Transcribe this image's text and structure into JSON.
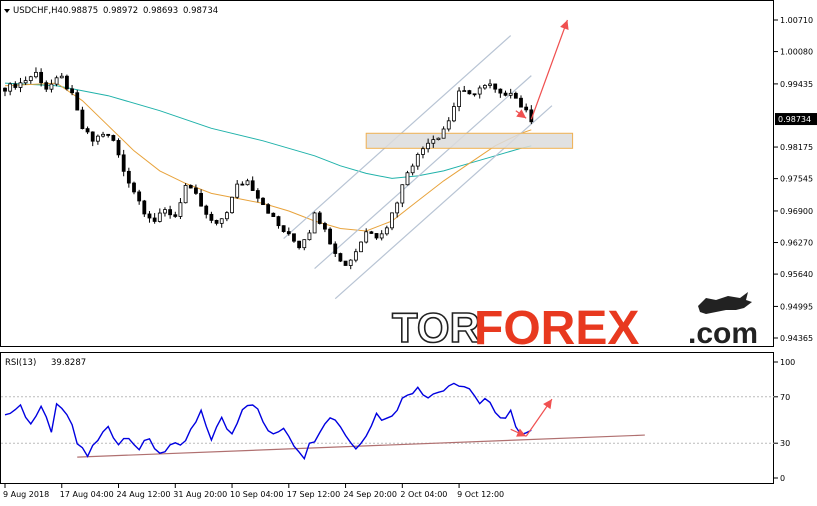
{
  "header": {
    "symbol": "USDCHF,H4",
    "open": "0.98875",
    "high": "0.98972",
    "low": "0.98693",
    "close": "0.98734"
  },
  "logo": {
    "part1": "TOR",
    "part2": "FOREX",
    "part3": ".com"
  },
  "colors": {
    "candles": "#000000",
    "ma_slow": "#20b2aa",
    "ma_fast": "#e8a33c",
    "channel": "#b8c4d4",
    "zone_fill": "#dcdcdc",
    "zone_border": "#f0b050",
    "arrow": "#f05050",
    "rsi_line": "#0000e0",
    "rsi_support": "#b07070",
    "logo_accent": "#e8391f"
  },
  "chart_data": [
    {
      "type": "candlestick",
      "name": "USDCHF,H4",
      "ylim": [
        0.94365,
        1.0071
      ],
      "price_ticks": [
        "1.00710",
        "1.00080",
        "0.99435",
        "0.98734",
        "0.98175",
        "0.97545",
        "0.96900",
        "0.96270",
        "0.95640",
        "0.94995",
        "0.94365"
      ],
      "current_price": "0.98734",
      "x_labels": [
        "9 Aug 2018",
        "17 Aug 04:00",
        "24 Aug 12:00",
        "31 Aug 20:00",
        "10 Sep 04:00",
        "17 Sep 12:00",
        "24 Sep 20:00",
        "2 Oct 04:00",
        "9 Oct 12:00"
      ],
      "x_label_index": [
        0,
        11,
        22,
        33,
        44,
        55,
        66,
        77,
        88
      ],
      "close_path": [
        [
          0,
          0.9935
        ],
        [
          3,
          0.9945
        ],
        [
          6,
          0.9965
        ],
        [
          8,
          0.9935
        ],
        [
          10,
          0.995
        ],
        [
          11,
          0.9955
        ],
        [
          13,
          0.992
        ],
        [
          15,
          0.9855
        ],
        [
          17,
          0.983
        ],
        [
          19,
          0.9845
        ],
        [
          21,
          0.983
        ],
        [
          23,
          0.977
        ],
        [
          25,
          0.973
        ],
        [
          27,
          0.969
        ],
        [
          29,
          0.967
        ],
        [
          31,
          0.969
        ],
        [
          33,
          0.968
        ],
        [
          35,
          0.974
        ],
        [
          37,
          0.972
        ],
        [
          39,
          0.968
        ],
        [
          41,
          0.966
        ],
        [
          43,
          0.969
        ],
        [
          45,
          0.974
        ],
        [
          47,
          0.975
        ],
        [
          49,
          0.972
        ],
        [
          51,
          0.969
        ],
        [
          53,
          0.966
        ],
        [
          55,
          0.964
        ],
        [
          57,
          0.962
        ],
        [
          59,
          0.965
        ],
        [
          60,
          0.969
        ],
        [
          62,
          0.965
        ],
        [
          64,
          0.961
        ],
        [
          66,
          0.958
        ],
        [
          68,
          0.961
        ],
        [
          70,
          0.965
        ],
        [
          72,
          0.964
        ],
        [
          74,
          0.966
        ],
        [
          76,
          0.971
        ],
        [
          78,
          0.977
        ],
        [
          80,
          0.98
        ],
        [
          82,
          0.983
        ],
        [
          84,
          0.984
        ],
        [
          86,
          0.987
        ],
        [
          88,
          0.993
        ],
        [
          90,
          0.992
        ],
        [
          92,
          0.9935
        ],
        [
          94,
          0.994
        ],
        [
          96,
          0.992
        ],
        [
          98,
          0.993
        ],
        [
          100,
          0.99
        ],
        [
          102,
          0.9873
        ]
      ],
      "ma_fast_path": [
        [
          0,
          0.994
        ],
        [
          10,
          0.9945
        ],
        [
          15,
          0.991
        ],
        [
          20,
          0.986
        ],
        [
          25,
          0.981
        ],
        [
          30,
          0.977
        ],
        [
          35,
          0.9745
        ],
        [
          40,
          0.9725
        ],
        [
          45,
          0.9715
        ],
        [
          50,
          0.9705
        ],
        [
          55,
          0.969
        ],
        [
          60,
          0.967
        ],
        [
          65,
          0.9655
        ],
        [
          70,
          0.965
        ],
        [
          75,
          0.967
        ],
        [
          80,
          0.971
        ],
        [
          85,
          0.975
        ],
        [
          90,
          0.9785
        ],
        [
          95,
          0.982
        ],
        [
          100,
          0.9845
        ],
        [
          102,
          0.9852
        ]
      ],
      "ma_slow_path": [
        [
          0,
          0.9945
        ],
        [
          10,
          0.994
        ],
        [
          20,
          0.992
        ],
        [
          30,
          0.989
        ],
        [
          40,
          0.9855
        ],
        [
          50,
          0.983
        ],
        [
          60,
          0.98
        ],
        [
          65,
          0.978
        ],
        [
          70,
          0.9765
        ],
        [
          75,
          0.9755
        ],
        [
          80,
          0.976
        ],
        [
          85,
          0.977
        ],
        [
          90,
          0.9785
        ],
        [
          95,
          0.98
        ],
        [
          100,
          0.9815
        ],
        [
          102,
          0.982
        ]
      ],
      "channel_lines": [
        {
          "from": [
            54,
            0.9635
          ],
          "to": [
            98,
            1.004
          ]
        },
        {
          "from": [
            64,
            0.9515
          ],
          "to": [
            106,
            0.99
          ]
        },
        {
          "from": [
            60,
            0.9575
          ],
          "to": [
            102,
            0.996
          ]
        }
      ],
      "support_zone": {
        "x_start": 70,
        "x_end": 110,
        "y_low": 0.9815,
        "y_high": 0.9845
      },
      "forecast_arrows": [
        {
          "from": [
            102,
            0.9873
          ],
          "to": [
            109,
            1.0071
          ]
        },
        {
          "from": [
            99,
            0.989
          ],
          "to": [
            101,
            0.9875
          ]
        }
      ]
    },
    {
      "type": "line",
      "name": "RSI(13)",
      "value_label": "39.8287",
      "ylim": [
        0,
        100
      ],
      "levels": [
        "100",
        "70",
        "30",
        "0"
      ],
      "rsi_path": [
        [
          0,
          54
        ],
        [
          3,
          62
        ],
        [
          5,
          48
        ],
        [
          7,
          58
        ],
        [
          9,
          42
        ],
        [
          10,
          60
        ],
        [
          12,
          55
        ],
        [
          14,
          30
        ],
        [
          16,
          20
        ],
        [
          18,
          32
        ],
        [
          20,
          45
        ],
        [
          22,
          30
        ],
        [
          24,
          38
        ],
        [
          26,
          25
        ],
        [
          28,
          32
        ],
        [
          30,
          22
        ],
        [
          32,
          28
        ],
        [
          34,
          25
        ],
        [
          36,
          40
        ],
        [
          38,
          55
        ],
        [
          40,
          35
        ],
        [
          42,
          50
        ],
        [
          44,
          38
        ],
        [
          46,
          62
        ],
        [
          48,
          66
        ],
        [
          50,
          48
        ],
        [
          52,
          35
        ],
        [
          54,
          45
        ],
        [
          56,
          30
        ],
        [
          58,
          20
        ],
        [
          60,
          35
        ],
        [
          62,
          50
        ],
        [
          64,
          52
        ],
        [
          66,
          38
        ],
        [
          68,
          25
        ],
        [
          70,
          40
        ],
        [
          72,
          55
        ],
        [
          74,
          50
        ],
        [
          76,
          62
        ],
        [
          78,
          72
        ],
        [
          80,
          80
        ],
        [
          82,
          70
        ],
        [
          84,
          75
        ],
        [
          86,
          76
        ],
        [
          88,
          82
        ],
        [
          90,
          75
        ],
        [
          92,
          62
        ],
        [
          94,
          68
        ],
        [
          96,
          52
        ],
        [
          98,
          55
        ],
        [
          100,
          40
        ],
        [
          102,
          38
        ]
      ],
      "support_line": {
        "from": [
          14,
          18
        ],
        "to": [
          124,
          37
        ]
      },
      "forecast_arrows": [
        {
          "from": [
            101,
            36
          ],
          "to": [
            106,
            68
          ]
        },
        {
          "from": [
            98,
            42
          ],
          "to": [
            101,
            36
          ]
        }
      ]
    }
  ]
}
